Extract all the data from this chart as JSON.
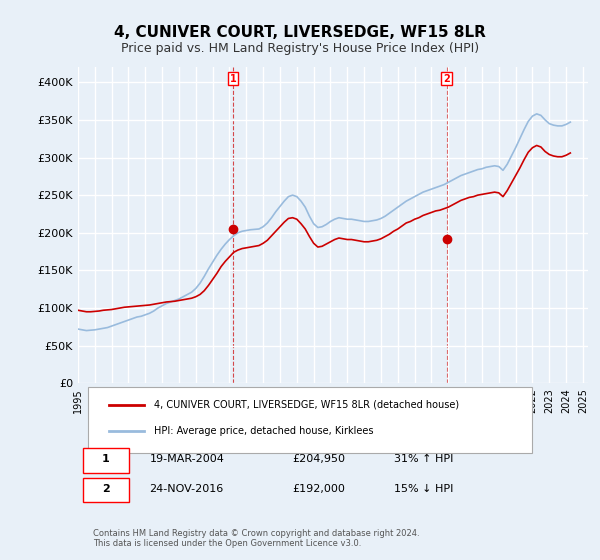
{
  "title": "4, CUNIVER COURT, LIVERSEDGE, WF15 8LR",
  "subtitle": "Price paid vs. HM Land Registry's House Price Index (HPI)",
  "title_fontsize": 11,
  "subtitle_fontsize": 9,
  "ylim": [
    0,
    420000
  ],
  "yticks": [
    0,
    50000,
    100000,
    150000,
    200000,
    250000,
    300000,
    350000,
    400000
  ],
  "ytick_labels": [
    "£0",
    "£50K",
    "£100K",
    "£150K",
    "£200K",
    "£250K",
    "£300K",
    "£350K",
    "£400K"
  ],
  "background_color": "#e8f0f8",
  "plot_bg_color": "#e8f0f8",
  "grid_color": "#ffffff",
  "red_line_color": "#cc0000",
  "blue_line_color": "#99bbdd",
  "marker1_date_x": 2004.2,
  "marker1_price": 204950,
  "marker2_date_x": 2016.9,
  "marker2_price": 192000,
  "legend_label_red": "4, CUNIVER COURT, LIVERSEDGE, WF15 8LR (detached house)",
  "legend_label_blue": "HPI: Average price, detached house, Kirklees",
  "table_rows": [
    {
      "num": "1",
      "date": "19-MAR-2004",
      "price": "£204,950",
      "change": "31% ↑ HPI"
    },
    {
      "num": "2",
      "date": "24-NOV-2016",
      "price": "£192,000",
      "change": "15% ↓ HPI"
    }
  ],
  "footer": "Contains HM Land Registry data © Crown copyright and database right 2024.\nThis data is licensed under the Open Government Licence v3.0.",
  "hpi_data": {
    "years": [
      1995.0,
      1995.25,
      1995.5,
      1995.75,
      1996.0,
      1996.25,
      1996.5,
      1996.75,
      1997.0,
      1997.25,
      1997.5,
      1997.75,
      1998.0,
      1998.25,
      1998.5,
      1998.75,
      1999.0,
      1999.25,
      1999.5,
      1999.75,
      2000.0,
      2000.25,
      2000.5,
      2000.75,
      2001.0,
      2001.25,
      2001.5,
      2001.75,
      2002.0,
      2002.25,
      2002.5,
      2002.75,
      2003.0,
      2003.25,
      2003.5,
      2003.75,
      2004.0,
      2004.25,
      2004.5,
      2004.75,
      2005.0,
      2005.25,
      2005.5,
      2005.75,
      2006.0,
      2006.25,
      2006.5,
      2006.75,
      2007.0,
      2007.25,
      2007.5,
      2007.75,
      2008.0,
      2008.25,
      2008.5,
      2008.75,
      2009.0,
      2009.25,
      2009.5,
      2009.75,
      2010.0,
      2010.25,
      2010.5,
      2010.75,
      2011.0,
      2011.25,
      2011.5,
      2011.75,
      2012.0,
      2012.25,
      2012.5,
      2012.75,
      2013.0,
      2013.25,
      2013.5,
      2013.75,
      2014.0,
      2014.25,
      2014.5,
      2014.75,
      2015.0,
      2015.25,
      2015.5,
      2015.75,
      2016.0,
      2016.25,
      2016.5,
      2016.75,
      2017.0,
      2017.25,
      2017.5,
      2017.75,
      2018.0,
      2018.25,
      2018.5,
      2018.75,
      2019.0,
      2019.25,
      2019.5,
      2019.75,
      2020.0,
      2020.25,
      2020.5,
      2020.75,
      2021.0,
      2021.25,
      2021.5,
      2021.75,
      2022.0,
      2022.25,
      2022.5,
      2022.75,
      2023.0,
      2023.25,
      2023.5,
      2023.75,
      2024.0,
      2024.25
    ],
    "values": [
      72000,
      71000,
      70000,
      70500,
      71000,
      72000,
      73000,
      74000,
      76000,
      78000,
      80000,
      82000,
      84000,
      86000,
      88000,
      89000,
      91000,
      93000,
      96000,
      100000,
      103000,
      106000,
      108000,
      110000,
      112000,
      115000,
      118000,
      121000,
      126000,
      133000,
      142000,
      152000,
      161000,
      170000,
      178000,
      185000,
      191000,
      196000,
      200000,
      202000,
      203000,
      204000,
      204500,
      205000,
      208000,
      213000,
      220000,
      228000,
      235000,
      242000,
      248000,
      250000,
      248000,
      242000,
      234000,
      222000,
      212000,
      207000,
      208000,
      211000,
      215000,
      218000,
      220000,
      219000,
      218000,
      218000,
      217000,
      216000,
      215000,
      215000,
      216000,
      217000,
      219000,
      222000,
      226000,
      230000,
      234000,
      238000,
      242000,
      245000,
      248000,
      251000,
      254000,
      256000,
      258000,
      260000,
      262000,
      264000,
      267000,
      270000,
      273000,
      276000,
      278000,
      280000,
      282000,
      284000,
      285000,
      287000,
      288000,
      289000,
      288000,
      283000,
      291000,
      302000,
      313000,
      325000,
      337000,
      348000,
      355000,
      358000,
      356000,
      350000,
      345000,
      343000,
      342000,
      342000,
      344000,
      347000
    ]
  },
  "property_data": {
    "years": [
      1995.0,
      1995.25,
      1995.5,
      1995.75,
      1996.0,
      1996.25,
      1996.5,
      1996.75,
      1997.0,
      1997.25,
      1997.5,
      1997.75,
      1998.0,
      1998.25,
      1998.5,
      1998.75,
      1999.0,
      1999.25,
      1999.5,
      1999.75,
      2000.0,
      2000.25,
      2000.5,
      2000.75,
      2001.0,
      2001.25,
      2001.5,
      2001.75,
      2002.0,
      2002.25,
      2002.5,
      2002.75,
      2003.0,
      2003.25,
      2003.5,
      2003.75,
      2004.0,
      2004.25,
      2004.5,
      2004.75,
      2005.0,
      2005.25,
      2005.5,
      2005.75,
      2006.0,
      2006.25,
      2006.5,
      2006.75,
      2007.0,
      2007.25,
      2007.5,
      2007.75,
      2008.0,
      2008.25,
      2008.5,
      2008.75,
      2009.0,
      2009.25,
      2009.5,
      2009.75,
      2010.0,
      2010.25,
      2010.5,
      2010.75,
      2011.0,
      2011.25,
      2011.5,
      2011.75,
      2012.0,
      2012.25,
      2012.5,
      2012.75,
      2013.0,
      2013.25,
      2013.5,
      2013.75,
      2014.0,
      2014.25,
      2014.5,
      2014.75,
      2015.0,
      2015.25,
      2015.5,
      2015.75,
      2016.0,
      2016.25,
      2016.5,
      2016.75,
      2017.0,
      2017.25,
      2017.5,
      2017.75,
      2018.0,
      2018.25,
      2018.5,
      2018.75,
      2019.0,
      2019.25,
      2019.5,
      2019.75,
      2020.0,
      2020.25,
      2020.5,
      2020.75,
      2021.0,
      2021.25,
      2021.5,
      2021.75,
      2022.0,
      2022.25,
      2022.5,
      2022.75,
      2023.0,
      2023.25,
      2023.5,
      2023.75,
      2024.0,
      2024.25
    ],
    "values": [
      97000,
      96000,
      95000,
      95000,
      95500,
      96000,
      97000,
      97500,
      98000,
      99000,
      100000,
      101000,
      101500,
      102000,
      102500,
      103000,
      103500,
      104000,
      105000,
      106000,
      107000,
      108000,
      108500,
      109000,
      110000,
      111000,
      112000,
      113000,
      115000,
      118000,
      123000,
      130000,
      138000,
      146000,
      155000,
      162000,
      168000,
      174000,
      177000,
      179000,
      180000,
      181000,
      182000,
      183000,
      186000,
      190000,
      196000,
      202000,
      208000,
      214000,
      219000,
      220000,
      218000,
      212000,
      205000,
      195000,
      186000,
      181000,
      182000,
      185000,
      188000,
      191000,
      193000,
      192000,
      191000,
      191000,
      190000,
      189000,
      188000,
      188000,
      189000,
      190000,
      192000,
      195000,
      198000,
      202000,
      205000,
      209000,
      213000,
      215000,
      218000,
      220000,
      223000,
      225000,
      227000,
      229000,
      230000,
      232000,
      234000,
      237000,
      240000,
      243000,
      245000,
      247000,
      248000,
      250000,
      251000,
      252000,
      253000,
      254000,
      253000,
      248000,
      256000,
      266000,
      276000,
      286000,
      297000,
      307000,
      313000,
      316000,
      314000,
      308000,
      304000,
      302000,
      301000,
      301000,
      303000,
      306000
    ]
  },
  "xtick_years": [
    1995,
    1996,
    1997,
    1998,
    1999,
    2000,
    2001,
    2002,
    2003,
    2004,
    2005,
    2006,
    2007,
    2008,
    2009,
    2010,
    2011,
    2012,
    2013,
    2014,
    2015,
    2016,
    2017,
    2018,
    2019,
    2020,
    2021,
    2022,
    2023,
    2024,
    2025
  ]
}
